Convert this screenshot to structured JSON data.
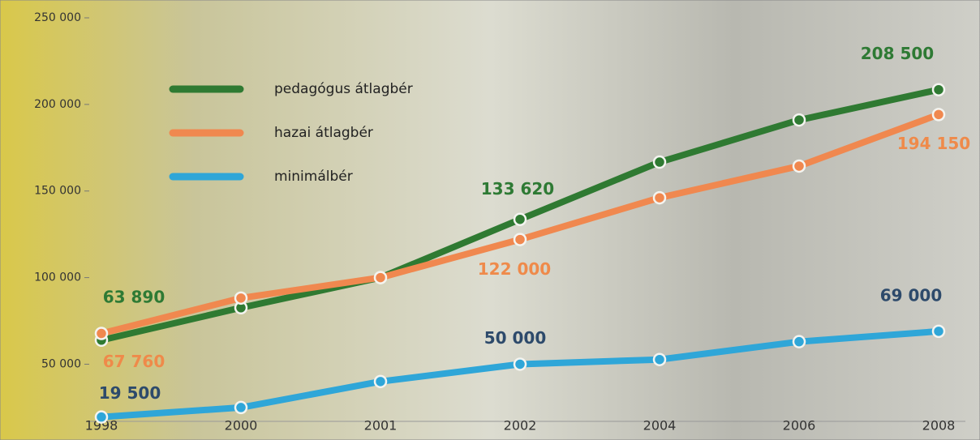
{
  "chart_data": {
    "type": "line",
    "categories": [
      "1998",
      "2000",
      "2001",
      "2002",
      "2004",
      "2006",
      "2008"
    ],
    "series": [
      {
        "name": "pedagógus átlagbér",
        "color": "#2f7a32",
        "label_color": "#2e7a34",
        "values": [
          63890,
          82600,
          100000,
          133620,
          166700,
          191000,
          208500
        ],
        "value_labels": [
          "63 890",
          null,
          null,
          "133 620",
          null,
          null,
          "208 500"
        ]
      },
      {
        "name": "hazai átlagbér",
        "color": "#f0884f",
        "label_color": "#ef8a4a",
        "values": [
          67760,
          88200,
          100000,
          122000,
          146100,
          164400,
          194150
        ],
        "value_labels": [
          "67 760",
          null,
          null,
          "122 000",
          null,
          null,
          "194 150"
        ]
      },
      {
        "name": "minimálbér",
        "color": "#2fa6d8",
        "label_color": "#2d4a6b",
        "values": [
          19500,
          25000,
          40000,
          50000,
          52700,
          63000,
          69000
        ],
        "value_labels": [
          "19 500",
          null,
          null,
          "50 000",
          null,
          null,
          "69 000"
        ]
      }
    ],
    "ylim": [
      17000,
      250000
    ],
    "yticks": [
      {
        "value": 50000,
        "label": "50 000"
      },
      {
        "value": 100000,
        "label": "100 000"
      },
      {
        "value": 150000,
        "label": "150 000"
      },
      {
        "value": 200000,
        "label": "200 000"
      },
      {
        "value": 250000,
        "label": "250 000"
      }
    ],
    "legend": "upper-left"
  }
}
